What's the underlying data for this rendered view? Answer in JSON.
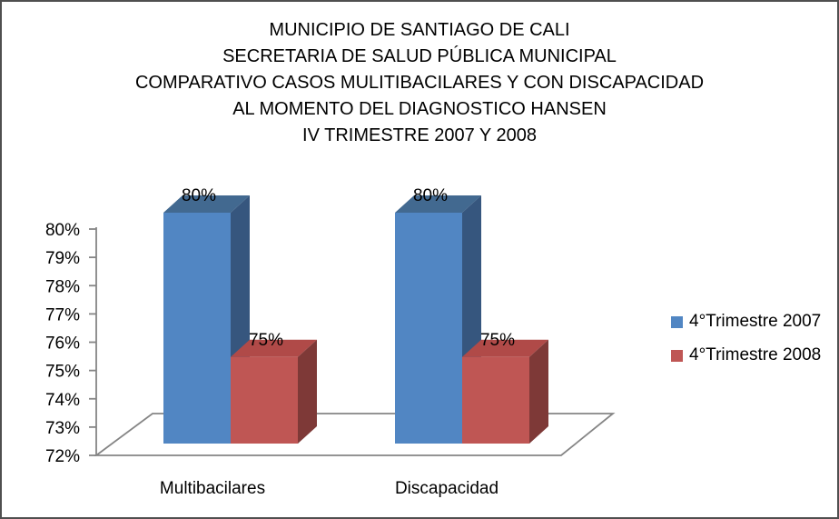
{
  "window": {
    "background": "#ffffff",
    "frame_color": "#4f4f4f"
  },
  "chart_data": {
    "type": "bar",
    "projection": "3d",
    "title_lines": [
      "MUNICIPIO DE SANTIAGO DE CALI",
      "SECRETARIA DE SALUD PÚBLICA MUNICIPAL",
      "COMPARATIVO CASOS MULITIBACILARES Y CON DISCAPACIDAD",
      "AL MOMENTO DEL DIAGNOSTICO HANSEN",
      "IV TRIMESTRE 2007 Y 2008"
    ],
    "categories": [
      "Multibacilares",
      "Discapacidad"
    ],
    "series": [
      {
        "name": "4°Trimestre 2007",
        "values": [
          80,
          80
        ],
        "color": "#5186C3",
        "color_top": "#426990",
        "color_side": "#36567E"
      },
      {
        "name": "4°Trimestre 2008",
        "values": [
          75,
          75
        ],
        "color": "#BF5654",
        "color_top": "#B04A48",
        "color_side": "#7E3937"
      }
    ],
    "data_labels": [
      [
        "80%",
        "75%"
      ],
      [
        "80%",
        "75%"
      ]
    ],
    "yaxis": {
      "min": 72,
      "max": 80,
      "step": 1,
      "tick_labels": [
        "72%",
        "73%",
        "74%",
        "75%",
        "76%",
        "77%",
        "78%",
        "79%",
        "80%"
      ]
    },
    "xlabel": "",
    "ylabel": "",
    "grid": false,
    "legend_position": "right",
    "axis_color": "#858585",
    "text_color": "#000000"
  }
}
